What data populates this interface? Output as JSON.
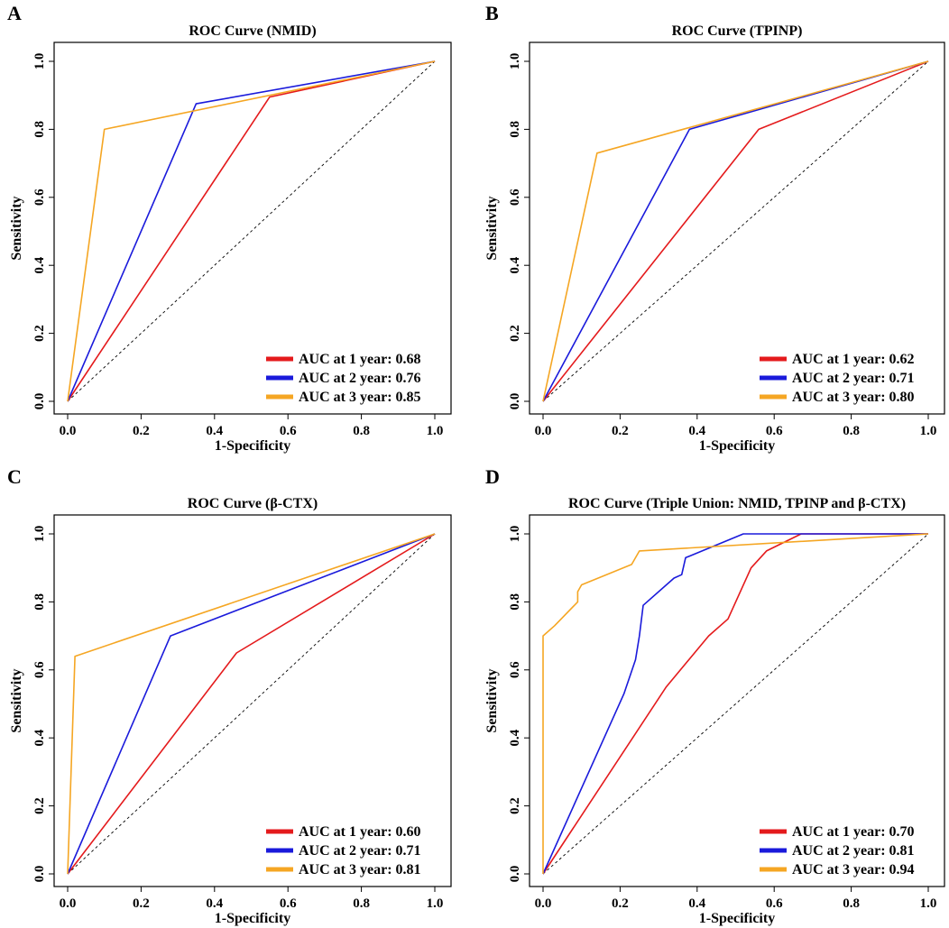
{
  "chart_data": [
    {
      "panel": "A",
      "type": "line",
      "title": "ROC Curve (NMID)",
      "xlabel": "1-Specificity",
      "ylabel": "Sensitivity",
      "xlim": [
        0,
        1
      ],
      "ylim": [
        0,
        1
      ],
      "xticks": [
        "0.0",
        "0.2",
        "0.4",
        "0.6",
        "0.8",
        "1.0"
      ],
      "yticks": [
        "0.0",
        "0.2",
        "0.4",
        "0.6",
        "0.8",
        "1.0"
      ],
      "legend_position": "bottom-right",
      "series": [
        {
          "name": "AUC at 1 year: 0.68",
          "color": "#e41a1c",
          "x": [
            0,
            0.55,
            1
          ],
          "y": [
            0,
            0.895,
            1
          ]
        },
        {
          "name": "AUC at 2 year: 0.76",
          "color": "#1a1adb",
          "x": [
            0,
            0.35,
            1
          ],
          "y": [
            0,
            0.875,
            1
          ]
        },
        {
          "name": "AUC at 3 year: 0.85",
          "color": "#f5a623",
          "x": [
            0,
            0.1,
            1
          ],
          "y": [
            0,
            0.8,
            1
          ]
        }
      ]
    },
    {
      "panel": "B",
      "type": "line",
      "title": "ROC Curve (TPINP)",
      "xlabel": "1-Specificity",
      "ylabel": "Sensitivity",
      "xlim": [
        0,
        1
      ],
      "ylim": [
        0,
        1
      ],
      "xticks": [
        "0.0",
        "0.2",
        "0.4",
        "0.6",
        "0.8",
        "1.0"
      ],
      "yticks": [
        "0.0",
        "0.2",
        "0.4",
        "0.6",
        "0.8",
        "1.0"
      ],
      "legend_position": "bottom-right",
      "series": [
        {
          "name": "AUC at 1 year: 0.62",
          "color": "#e41a1c",
          "x": [
            0,
            0.56,
            1
          ],
          "y": [
            0,
            0.8,
            1
          ]
        },
        {
          "name": "AUC at 2 year: 0.71",
          "color": "#1a1adb",
          "x": [
            0,
            0.38,
            1
          ],
          "y": [
            0,
            0.8,
            1
          ]
        },
        {
          "name": "AUC at 3 year: 0.80",
          "color": "#f5a623",
          "x": [
            0,
            0.14,
            1
          ],
          "y": [
            0,
            0.73,
            1
          ]
        }
      ]
    },
    {
      "panel": "C",
      "type": "line",
      "title": "ROC Curve (β-CTX)",
      "xlabel": "1-Specificity",
      "ylabel": "Sensitivity",
      "xlim": [
        0,
        1
      ],
      "ylim": [
        0,
        1
      ],
      "xticks": [
        "0.0",
        "0.2",
        "0.4",
        "0.6",
        "0.8",
        "1.0"
      ],
      "yticks": [
        "0.0",
        "0.2",
        "0.4",
        "0.6",
        "0.8",
        "1.0"
      ],
      "legend_position": "bottom-right",
      "series": [
        {
          "name": "AUC at 1 year: 0.60",
          "color": "#e41a1c",
          "x": [
            0,
            0.46,
            1
          ],
          "y": [
            0,
            0.65,
            1
          ]
        },
        {
          "name": "AUC at 2 year: 0.71",
          "color": "#1a1adb",
          "x": [
            0,
            0.28,
            1
          ],
          "y": [
            0,
            0.7,
            1
          ]
        },
        {
          "name": "AUC at 3 year: 0.81",
          "color": "#f5a623",
          "x": [
            0,
            0.02,
            1
          ],
          "y": [
            0,
            0.64,
            1
          ]
        }
      ]
    },
    {
      "panel": "D",
      "type": "line",
      "title": "ROC Curve (Triple Union: NMID, TPINP and β-CTX)",
      "xlabel": "1-Specificity",
      "ylabel": "Sensitivity",
      "xlim": [
        0,
        1
      ],
      "ylim": [
        0,
        1
      ],
      "xticks": [
        "0.0",
        "0.2",
        "0.4",
        "0.6",
        "0.8",
        "1.0"
      ],
      "yticks": [
        "0.0",
        "0.2",
        "0.4",
        "0.6",
        "0.8",
        "1.0"
      ],
      "legend_position": "bottom-right",
      "series": [
        {
          "name": "AUC at 1 year: 0.70",
          "color": "#e41a1c",
          "x": [
            0,
            0.32,
            0.43,
            0.48,
            0.54,
            0.58,
            0.67,
            1
          ],
          "y": [
            0,
            0.55,
            0.7,
            0.75,
            0.9,
            0.95,
            1.0,
            1
          ]
        },
        {
          "name": "AUC at 2 year: 0.81",
          "color": "#1a1adb",
          "x": [
            0,
            0.21,
            0.24,
            0.25,
            0.26,
            0.34,
            0.36,
            0.37,
            0.52,
            1
          ],
          "y": [
            0,
            0.53,
            0.63,
            0.7,
            0.79,
            0.87,
            0.88,
            0.93,
            1.0,
            1
          ]
        },
        {
          "name": "AUC at 3 year: 0.94",
          "color": "#f5a623",
          "x": [
            0,
            0,
            0.03,
            0.09,
            0.09,
            0.1,
            0.23,
            0.25,
            1
          ],
          "y": [
            0,
            0.7,
            0.73,
            0.8,
            0.83,
            0.85,
            0.91,
            0.95,
            1
          ]
        }
      ]
    }
  ]
}
